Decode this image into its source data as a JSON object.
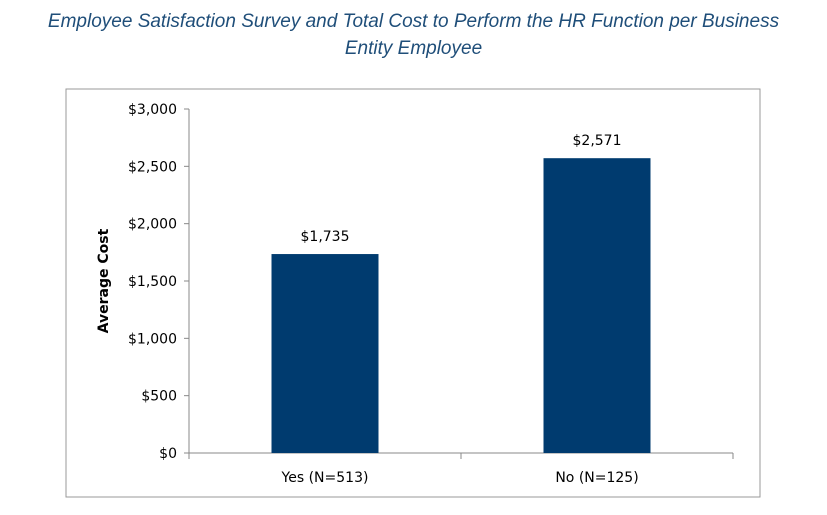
{
  "title": {
    "line1": "Employee Satisfaction Survey and Total Cost to Perform the HR Function per Business",
    "line2": "Entity Employee"
  },
  "chart_data": {
    "type": "bar",
    "categories": [
      "Yes (N=513)",
      "No (N=125)"
    ],
    "values": [
      1735,
      2571
    ],
    "data_labels": [
      "$1,735",
      "$2,571"
    ],
    "ylabel": "Average Cost",
    "xlabel": "",
    "ylim": [
      0,
      3000
    ],
    "yticks": [
      0,
      500,
      1000,
      1500,
      2000,
      2500,
      3000
    ],
    "ytick_labels": [
      "$0",
      "$500",
      "$1,000",
      "$1,500",
      "$2,000",
      "$2,500",
      "$3,000"
    ],
    "grid": false,
    "legend": "none",
    "bar_color": "#003b6f"
  }
}
